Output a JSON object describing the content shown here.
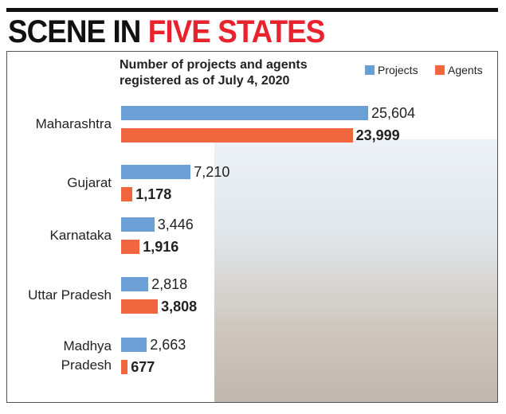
{
  "chart_data": {
    "type": "bar",
    "orientation": "horizontal",
    "title_lead": "SCENE IN",
    "title_highlight": "FIVE STATES",
    "subtitle": "Number of projects and agents registered as of July 4, 2020",
    "categories": [
      "Maharashtra",
      "Gujarat",
      "Karnataka",
      "Uttar Pradesh",
      "Madhya Pradesh"
    ],
    "series": [
      {
        "name": "Projects",
        "color": "#6c9fd6",
        "values": [
          25604,
          7210,
          3446,
          2818,
          2663
        ],
        "value_labels": [
          "25,604",
          "7,210",
          "3,446",
          "2,818",
          "2,663"
        ]
      },
      {
        "name": "Agents",
        "color": "#f0673f",
        "values": [
          23999,
          1178,
          1916,
          3808,
          677
        ],
        "value_labels": [
          "23,999",
          "1,178",
          "1,916",
          "3,808",
          "677"
        ]
      }
    ]
  }
}
